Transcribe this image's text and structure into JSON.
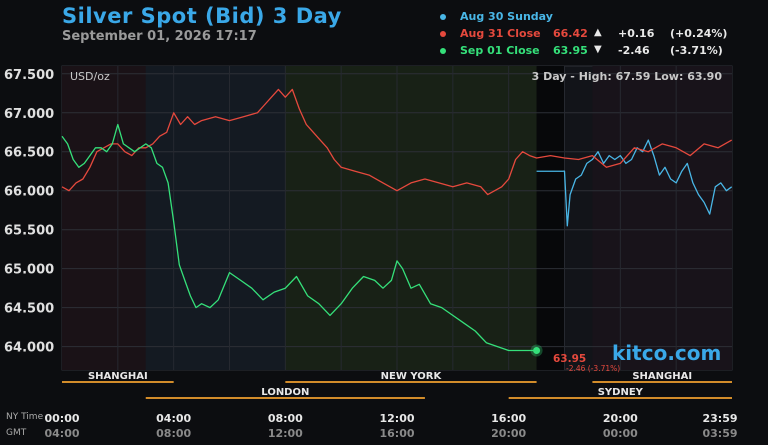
{
  "header": {
    "title": "Silver Spot (Bid) 3 Day",
    "subtitle": "September 01, 2026 17:17"
  },
  "legend": [
    {
      "name": "Aug 30 Sunday",
      "value": "",
      "arrow": "",
      "change": "",
      "percent": "",
      "color": "#49b6e6"
    },
    {
      "name": "Aug 31 Close",
      "value": "66.42",
      "arrow": "▲",
      "change": "+0.16",
      "percent": "(+0.24%)",
      "color": "#e5493d"
    },
    {
      "name": "Sep 01 Close",
      "value": "63.95",
      "arrow": "▼",
      "change": "-2.46",
      "percent": "(-3.71%)",
      "color": "#35e07a"
    }
  ],
  "unit_label": "USD/oz",
  "range_label": "3 Day - High: 67.59  Low: 63.90",
  "last": {
    "value": "63.95",
    "change": "-2.46 (-3.71%)"
  },
  "watermark": "kitco.com",
  "time_rows": {
    "ny_label": "NY Time",
    "gmt_label": "GMT"
  },
  "sessions": [
    {
      "name": "SHANGHAI",
      "start": 0,
      "end": 4,
      "row": 1
    },
    {
      "name": "NEW YORK",
      "start": 8,
      "end": 17,
      "row": 1
    },
    {
      "name": "SHANGHAI",
      "start": 19,
      "end": 24,
      "row": 1
    },
    {
      "name": "LONDON",
      "start": 3,
      "end": 13,
      "row": 2
    },
    {
      "name": "SYDNEY",
      "start": 16,
      "end": 24,
      "row": 2
    }
  ],
  "colors": {
    "aug30": "#49b6e6",
    "aug31": "#e5493d",
    "sep01": "#35e07a",
    "session_bar": "#d28c2a"
  },
  "chart_data": {
    "type": "line",
    "title": "Silver Spot (Bid) 3 Day",
    "ylabel": "USD/oz",
    "ylim": [
      63.7,
      67.6
    ],
    "yticks": [
      "64.000",
      "64.500",
      "65.000",
      "65.500",
      "66.000",
      "66.500",
      "67.000",
      "67.500"
    ],
    "xlim": [
      0,
      24
    ],
    "xticks_ny": [
      "00:00",
      "04:00",
      "08:00",
      "12:00",
      "16:00",
      "20:00",
      "23:59"
    ],
    "xticks_gmt": [
      "04:00",
      "08:00",
      "12:00",
      "16:00",
      "20:00",
      "00:00",
      "03:59"
    ],
    "series": [
      {
        "name": "Aug 30 Sunday",
        "x": [
          17.95,
          18.0,
          18.1,
          18.2,
          18.4,
          18.6,
          18.8,
          19.0,
          19.2,
          19.4,
          19.6,
          19.8,
          20.0,
          20.2,
          20.4,
          20.6,
          20.8,
          21.0,
          21.2,
          21.4,
          21.6,
          21.8,
          22.0,
          22.2,
          22.4,
          22.6,
          22.8,
          23.0,
          23.2,
          23.4,
          23.6,
          23.8,
          23.99
        ],
        "y": [
          66.25,
          66.25,
          65.55,
          65.95,
          66.15,
          66.2,
          66.35,
          66.4,
          66.5,
          66.35,
          66.45,
          66.4,
          66.45,
          66.35,
          66.4,
          66.55,
          66.5,
          66.65,
          66.45,
          66.2,
          66.3,
          66.15,
          66.1,
          66.25,
          66.35,
          66.1,
          65.95,
          65.85,
          65.7,
          66.05,
          66.1,
          66.0,
          66.05
        ]
      },
      {
        "name": "Aug 31 Close",
        "x": [
          0.0,
          0.25,
          0.5,
          0.75,
          1.0,
          1.25,
          1.5,
          1.75,
          2.0,
          2.25,
          2.5,
          2.75,
          3.0,
          3.25,
          3.5,
          3.75,
          4.0,
          4.25,
          4.5,
          4.75,
          5.0,
          5.5,
          6.0,
          6.5,
          7.0,
          7.25,
          7.5,
          7.75,
          8.0,
          8.25,
          8.5,
          8.75,
          9.0,
          9.25,
          9.5,
          9.75,
          10.0,
          10.5,
          11.0,
          11.5,
          12.0,
          12.5,
          13.0,
          13.5,
          14.0,
          14.5,
          15.0,
          15.25,
          15.5,
          15.75,
          16.0,
          16.25,
          16.5,
          16.75,
          17.0,
          17.5,
          18.0,
          18.5,
          19.0,
          19.5,
          20.0,
          20.5,
          21.0,
          21.5,
          22.0,
          22.5,
          23.0,
          23.5,
          23.99
        ],
        "y": [
          66.05,
          66.0,
          66.1,
          66.15,
          66.3,
          66.5,
          66.55,
          66.6,
          66.6,
          66.5,
          66.45,
          66.55,
          66.55,
          66.6,
          66.7,
          66.75,
          67.0,
          66.85,
          66.95,
          66.85,
          66.9,
          66.95,
          66.9,
          66.95,
          67.0,
          67.1,
          67.2,
          67.3,
          67.2,
          67.3,
          67.05,
          66.85,
          66.75,
          66.65,
          66.55,
          66.4,
          66.3,
          66.25,
          66.2,
          66.1,
          66.0,
          66.1,
          66.15,
          66.1,
          66.05,
          66.1,
          66.05,
          65.95,
          66.0,
          66.05,
          66.15,
          66.4,
          66.5,
          66.45,
          66.42,
          66.45,
          66.42,
          66.4,
          66.45,
          66.3,
          66.35,
          66.55,
          66.5,
          66.6,
          66.55,
          66.45,
          66.6,
          66.55,
          66.65
        ]
      },
      {
        "name": "Sep 01 Close",
        "x": [
          0.0,
          0.2,
          0.4,
          0.6,
          0.8,
          1.0,
          1.2,
          1.4,
          1.6,
          1.8,
          2.0,
          2.2,
          2.4,
          2.6,
          2.8,
          3.0,
          3.2,
          3.4,
          3.6,
          3.8,
          4.0,
          4.2,
          4.4,
          4.6,
          4.8,
          5.0,
          5.3,
          5.6,
          6.0,
          6.4,
          6.8,
          7.2,
          7.6,
          8.0,
          8.4,
          8.8,
          9.2,
          9.6,
          10.0,
          10.4,
          10.8,
          11.2,
          11.5,
          11.8,
          12.0,
          12.2,
          12.5,
          12.8,
          13.2,
          13.6,
          14.0,
          14.4,
          14.8,
          15.2,
          15.6,
          16.0,
          16.4,
          16.8,
          17.0
        ],
        "y": [
          66.7,
          66.6,
          66.4,
          66.3,
          66.35,
          66.45,
          66.55,
          66.55,
          66.5,
          66.6,
          66.85,
          66.6,
          66.55,
          66.5,
          66.55,
          66.6,
          66.55,
          66.35,
          66.3,
          66.1,
          65.6,
          65.05,
          64.85,
          64.65,
          64.5,
          64.55,
          64.5,
          64.6,
          64.95,
          64.85,
          64.75,
          64.6,
          64.7,
          64.75,
          64.9,
          64.65,
          64.55,
          64.4,
          64.55,
          64.75,
          64.9,
          64.85,
          64.75,
          64.85,
          65.1,
          65.0,
          64.75,
          64.8,
          64.55,
          64.5,
          64.4,
          64.3,
          64.2,
          64.05,
          64.0,
          63.95,
          63.95,
          63.95,
          63.95
        ]
      }
    ]
  }
}
